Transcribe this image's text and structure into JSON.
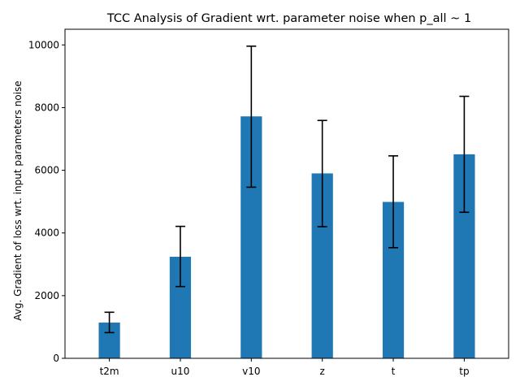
{
  "chart_data": {
    "type": "bar",
    "title": "TCC Analysis of Gradient wrt. parameter noise when p_all ~ 1",
    "xlabel": "",
    "ylabel": "Avg. Gradient of loss wrt. input parameters noise",
    "categories": [
      "t2m",
      "u10",
      "v10",
      "z",
      "t",
      "tp"
    ],
    "values": [
      1140,
      3240,
      7720,
      5900,
      4990,
      6510
    ],
    "error_low": [
      820,
      2290,
      5460,
      4200,
      3530,
      4660
    ],
    "error_high": [
      1470,
      4210,
      9960,
      7590,
      6460,
      8360
    ],
    "ylim": [
      0,
      10500
    ],
    "yticks": [
      0,
      2000,
      4000,
      6000,
      8000,
      10000
    ],
    "ytick_labels": [
      "0",
      "2000",
      "4000",
      "6000",
      "8000",
      "10000"
    ],
    "bar_color": "#1f77b4",
    "error_color": "#000000",
    "grid": false
  }
}
